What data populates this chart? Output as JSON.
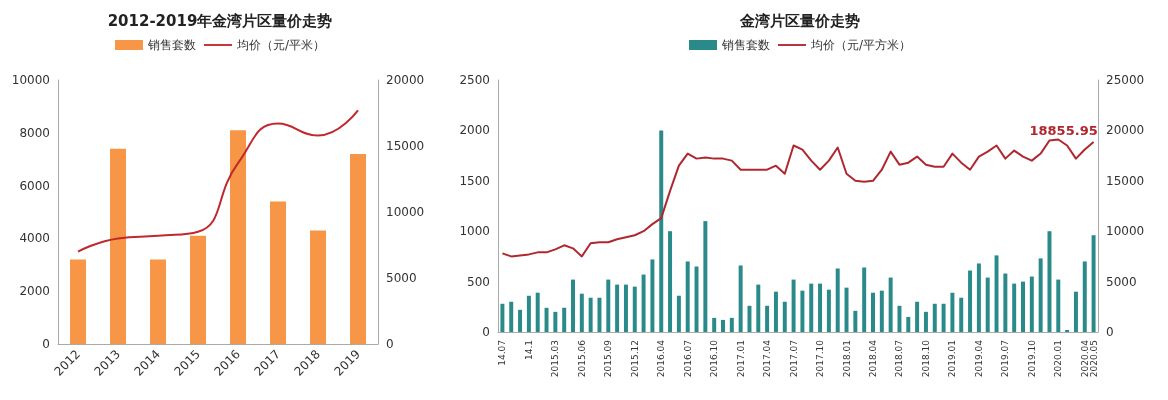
{
  "chart_data": [
    {
      "type": "bar",
      "title": "2012-2019年金湾片区量价走势",
      "categories": [
        "2012",
        "2013",
        "2014",
        "2015",
        "2016",
        "2017",
        "2018",
        "2019"
      ],
      "series": [
        {
          "name": "销售套数",
          "color": "#f79646",
          "values": [
            3200,
            7400,
            3200,
            4100,
            8100,
            5400,
            4300,
            7200
          ]
        },
        {
          "name": "均价（元/平米）",
          "type": "line",
          "color": "#c0282d",
          "axis": "y2",
          "marker": "none",
          "values": [
            7000,
            8000,
            8200,
            8500,
            13700,
            16700,
            15800,
            17700
          ]
        }
      ],
      "ylim": [
        0,
        10000
      ],
      "yticks": [
        0,
        2000,
        4000,
        6000,
        8000,
        10000
      ],
      "y2lim": [
        0,
        20000
      ],
      "y2ticks": [
        0,
        5000,
        10000,
        15000,
        20000
      ],
      "legend": "top",
      "grid": false
    },
    {
      "type": "bar",
      "title": "金湾片区量价走势",
      "categories": [
        "14.07",
        null,
        null,
        "14.1",
        null,
        null,
        "2015.03",
        null,
        null,
        "2015.06",
        null,
        null,
        "2015.09",
        null,
        null,
        "2015.12",
        null,
        null,
        "2016.04",
        null,
        null,
        "2016.07",
        null,
        null,
        "2016.10",
        null,
        null,
        "2017.01",
        null,
        null,
        "2017.04",
        null,
        null,
        "2017.07",
        null,
        null,
        "2017.10",
        null,
        null,
        "2018.01",
        null,
        null,
        "2018.04",
        null,
        null,
        "2018.07",
        null,
        null,
        "2018.10",
        null,
        null,
        "2019.01",
        null,
        null,
        "2019.04",
        null,
        null,
        "2019.07",
        null,
        null,
        "2019.10",
        null,
        null,
        "2020.01",
        null,
        null,
        "2020.04",
        "2020.05"
      ],
      "series": [
        {
          "name": "销售套数",
          "color": "#2a8a8a",
          "values": [
            280,
            300,
            220,
            360,
            390,
            240,
            200,
            240,
            520,
            380,
            340,
            340,
            520,
            470,
            470,
            450,
            570,
            720,
            2000,
            1000,
            360,
            700,
            650,
            1100,
            140,
            120,
            140,
            660,
            260,
            470,
            260,
            400,
            300,
            520,
            410,
            480,
            480,
            420,
            630,
            440,
            210,
            640,
            390,
            410,
            540,
            260,
            150,
            300,
            200,
            280,
            280,
            390,
            340,
            610,
            680,
            540,
            760,
            580,
            480,
            500,
            550,
            730,
            1000,
            520,
            20,
            400,
            700,
            960
          ]
        },
        {
          "name": "均价（元/平方米）",
          "type": "line",
          "color": "#b0282f",
          "axis": "y2",
          "values": [
            7800,
            7500,
            7600,
            7700,
            7900,
            7900,
            8200,
            8600,
            8300,
            7500,
            8800,
            8900,
            8900,
            9200,
            9400,
            9600,
            10000,
            10700,
            11300,
            14000,
            16500,
            17700,
            17200,
            17300,
            17200,
            17200,
            17000,
            16100,
            16100,
            16100,
            16100,
            16500,
            15700,
            18500,
            18100,
            17000,
            16100,
            17000,
            18300,
            15700,
            15000,
            14900,
            15000,
            16100,
            17900,
            16600,
            16800,
            17400,
            16600,
            16400,
            16400,
            17700,
            16800,
            16100,
            17400,
            17900,
            18500,
            17200,
            18000,
            17400,
            17000,
            17700,
            19000,
            19100,
            18500,
            17200,
            18100,
            18855.95
          ],
          "value_labels": [
            null,
            null,
            null,
            null,
            null,
            null,
            null,
            null,
            null,
            null,
            null,
            null,
            null,
            null,
            null,
            null,
            null,
            null,
            null,
            null,
            null,
            null,
            null,
            null,
            null,
            null,
            null,
            null,
            null,
            null,
            null,
            null,
            null,
            null,
            null,
            null,
            null,
            null,
            null,
            null,
            null,
            null,
            null,
            null,
            null,
            null,
            null,
            null,
            null,
            null,
            null,
            null,
            null,
            null,
            null,
            null,
            null,
            null,
            null,
            null,
            null,
            null,
            null,
            null,
            null,
            null,
            null,
            "18855.95"
          ]
        }
      ],
      "ylim": [
        0,
        2500
      ],
      "yticks": [
        0,
        500,
        1000,
        1500,
        2000,
        2500
      ],
      "y2lim": [
        0,
        25000
      ],
      "y2ticks": [
        0,
        5000,
        10000,
        15000,
        20000,
        25000
      ],
      "legend": "top",
      "grid": false
    }
  ]
}
